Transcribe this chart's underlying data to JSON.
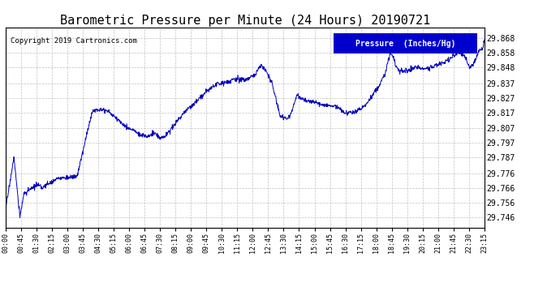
{
  "title": "Barometric Pressure per Minute (24 Hours) 20190721",
  "copyright": "Copyright 2019 Cartronics.com",
  "legend_label": "Pressure  (Inches/Hg)",
  "legend_bg": "#0000cc",
  "legend_fg": "#ffffff",
  "line_color": "#0000bb",
  "bg_color": "#ffffff",
  "grid_color": "#bbbbbb",
  "title_fontsize": 11,
  "yticks": [
    29.746,
    29.756,
    29.766,
    29.776,
    29.787,
    29.797,
    29.807,
    29.817,
    29.827,
    29.837,
    29.848,
    29.858,
    29.868
  ],
  "xtick_labels": [
    "00:00",
    "00:45",
    "01:30",
    "02:15",
    "03:00",
    "03:45",
    "04:30",
    "05:15",
    "06:00",
    "06:45",
    "07:30",
    "08:15",
    "09:00",
    "09:45",
    "10:30",
    "11:15",
    "12:00",
    "12:45",
    "13:30",
    "14:15",
    "15:00",
    "15:45",
    "16:30",
    "17:15",
    "18:00",
    "18:45",
    "19:30",
    "20:15",
    "21:00",
    "21:45",
    "22:30",
    "23:15"
  ],
  "ylim": [
    29.7385,
    29.8755
  ],
  "waypoints": [
    [
      0,
      29.751
    ],
    [
      25,
      29.787
    ],
    [
      43,
      29.746
    ],
    [
      55,
      29.762
    ],
    [
      75,
      29.765
    ],
    [
      95,
      29.768
    ],
    [
      110,
      29.766
    ],
    [
      130,
      29.769
    ],
    [
      155,
      29.772
    ],
    [
      175,
      29.773
    ],
    [
      195,
      29.773
    ],
    [
      215,
      29.774
    ],
    [
      260,
      29.818
    ],
    [
      285,
      29.82
    ],
    [
      310,
      29.818
    ],
    [
      330,
      29.814
    ],
    [
      345,
      29.811
    ],
    [
      360,
      29.808
    ],
    [
      385,
      29.805
    ],
    [
      405,
      29.802
    ],
    [
      425,
      29.801
    ],
    [
      445,
      29.803
    ],
    [
      465,
      29.8
    ],
    [
      480,
      29.801
    ],
    [
      510,
      29.81
    ],
    [
      540,
      29.818
    ],
    [
      570,
      29.824
    ],
    [
      600,
      29.831
    ],
    [
      630,
      29.836
    ],
    [
      660,
      29.838
    ],
    [
      690,
      29.84
    ],
    [
      720,
      29.84
    ],
    [
      750,
      29.843
    ],
    [
      765,
      29.85
    ],
    [
      785,
      29.845
    ],
    [
      800,
      29.838
    ],
    [
      825,
      29.815
    ],
    [
      845,
      29.813
    ],
    [
      855,
      29.815
    ],
    [
      875,
      29.829
    ],
    [
      890,
      29.827
    ],
    [
      910,
      29.825
    ],
    [
      930,
      29.824
    ],
    [
      950,
      29.823
    ],
    [
      970,
      29.822
    ],
    [
      1000,
      29.821
    ],
    [
      1020,
      29.817
    ],
    [
      1040,
      29.817
    ],
    [
      1060,
      29.819
    ],
    [
      1080,
      29.822
    ],
    [
      1100,
      29.828
    ],
    [
      1120,
      29.835
    ],
    [
      1140,
      29.843
    ],
    [
      1155,
      29.858
    ],
    [
      1165,
      29.856
    ],
    [
      1175,
      29.848
    ],
    [
      1185,
      29.845
    ],
    [
      1200,
      29.846
    ],
    [
      1215,
      29.846
    ],
    [
      1230,
      29.848
    ],
    [
      1250,
      29.848
    ],
    [
      1265,
      29.847
    ],
    [
      1280,
      29.848
    ],
    [
      1300,
      29.85
    ],
    [
      1320,
      29.852
    ],
    [
      1340,
      29.855
    ],
    [
      1360,
      29.858
    ],
    [
      1380,
      29.856
    ],
    [
      1395,
      29.848
    ],
    [
      1405,
      29.85
    ],
    [
      1420,
      29.858
    ],
    [
      1435,
      29.862
    ],
    [
      1439,
      29.868
    ]
  ],
  "noise_std": 0.0008,
  "noise_seed": 17
}
